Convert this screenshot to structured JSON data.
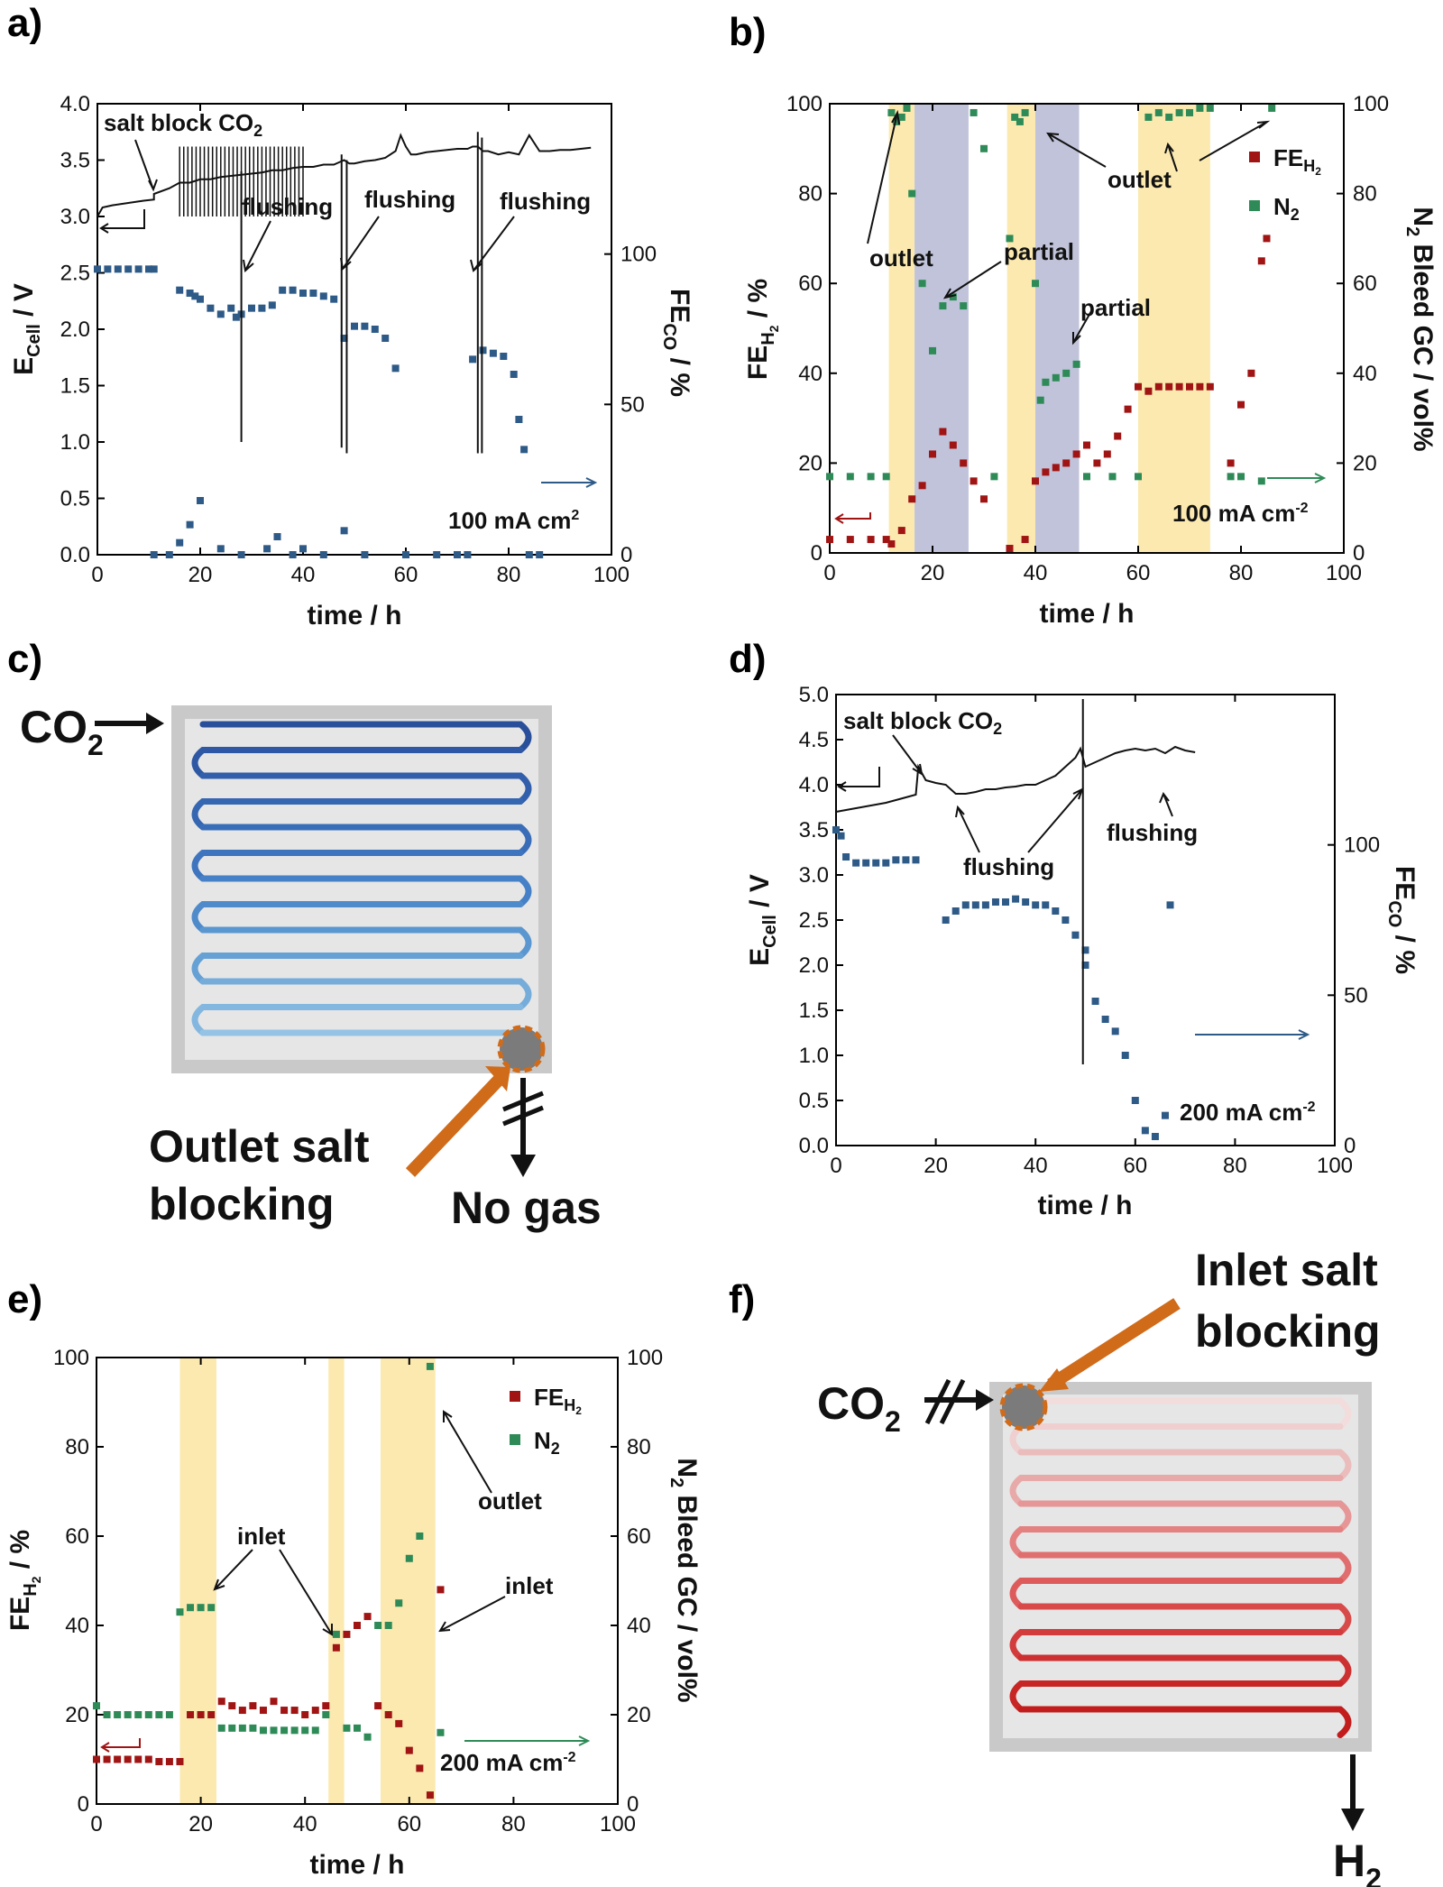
{
  "colors": {
    "fe_co": "#2e5a87",
    "fe_h2": "#a01414",
    "n2": "#2e8b57",
    "highlight_yellow": "#fbe7a6",
    "highlight_grey": "#b9bdd6",
    "accent_orange": "#d06b1a"
  },
  "panel_letters": {
    "a": "a)",
    "b": "b)",
    "c": "c)",
    "d": "d)",
    "e": "e)",
    "f": "f)"
  },
  "common_axis": {
    "xlabel": "time / h",
    "x_ticks": [
      "0",
      "20",
      "40",
      "60",
      "80",
      "100"
    ]
  },
  "a": {
    "ylabel": "ECell / V",
    "ylabel_main": "E",
    "ylabel_sub": "Cell",
    "ylabel_rest": " / V",
    "y2label_main": "FE",
    "y2label_sub": "CO",
    "y2label_rest": " / %",
    "y_ticks": [
      "0.0",
      "0.5",
      "1.0",
      "1.5",
      "2.0",
      "2.5",
      "3.0",
      "3.5",
      "4.0"
    ],
    "y2_ticks": [
      "0",
      "50",
      "100"
    ],
    "annotations": {
      "salt_block": "salt block CO",
      "salt_block_sub": "2",
      "flushing1": "flushing",
      "flushing2": "flushing",
      "flushing3": "flushing",
      "current": "100 mA cm",
      "current_sup": "2"
    }
  },
  "b": {
    "ylabel_main": "FE",
    "ylabel_sub": "H",
    "ylabel_subsub": "2",
    "ylabel_rest": " / %",
    "y2label": "N2 Bleed GC / vol%",
    "y2label_main": "N",
    "y2label_sub": "2",
    "y2label_rest": " Bleed GC / vol%",
    "y_ticks": [
      "0",
      "20",
      "40",
      "60",
      "80",
      "100"
    ],
    "legend": {
      "fe": "FE",
      "fe_sub": "H",
      "fe_subsub": "2",
      "n2": "N",
      "n2_sub": "2"
    },
    "annotations": {
      "outlet1": "outlet",
      "outlet2": "outlet",
      "partial1": "partial",
      "partial2": "partial",
      "current": "100 mA cm",
      "current_sup": "-2"
    }
  },
  "c": {
    "label_co2": "CO",
    "label_co2_sub": "2",
    "caption1": "Outlet salt",
    "caption2": "blocking",
    "nogas": "No gas"
  },
  "d": {
    "ylabel_main": "E",
    "ylabel_sub": "Cell",
    "ylabel_rest": " / V",
    "y2label_main": "FE",
    "y2label_sub": "CO",
    "y2label_rest": " / %",
    "y_ticks": [
      "0.0",
      "0.5",
      "1.0",
      "1.5",
      "2.0",
      "2.5",
      "3.0",
      "3.5",
      "4.0",
      "4.5",
      "5.0"
    ],
    "y2_ticks": [
      "0",
      "50",
      "100"
    ],
    "annotations": {
      "salt_block": "salt block CO",
      "salt_block_sub": "2",
      "flushing1": "flushing",
      "flushing2": "flushing",
      "current": "200 mA cm",
      "current_sup": "-2"
    }
  },
  "e": {
    "ylabel_main": "FE",
    "ylabel_sub": "H",
    "ylabel_subsub": "2",
    "ylabel_rest": " / %",
    "y2label_main": "N",
    "y2label_sub": "2",
    "y2label_rest": " Bleed GC / vol%",
    "y_ticks": [
      "0",
      "20",
      "40",
      "60",
      "80",
      "100"
    ],
    "legend": {
      "fe": "FE",
      "fe_sub": "H",
      "fe_subsub": "2",
      "n2": "N",
      "n2_sub": "2"
    },
    "annotations": {
      "inlet1": "inlet",
      "inlet2": "inlet",
      "outlet": "outlet",
      "current": "200 mA cm",
      "current_sup": "-2"
    }
  },
  "f": {
    "caption1": "Inlet salt",
    "caption2": "blocking",
    "label_co2": "CO",
    "label_co2_sub": "2",
    "h2": "H",
    "h2_sub": "2"
  },
  "chart_data": [
    {
      "type": "line",
      "panel": "a",
      "xlim": [
        0,
        100
      ],
      "ylim": [
        0,
        4
      ],
      "y2lim": [
        0,
        150
      ],
      "series": [
        {
          "axis": "left",
          "x": [
            0,
            1,
            3,
            6,
            9,
            11,
            11,
            14,
            16,
            18,
            20,
            22,
            24,
            26,
            28,
            30,
            32,
            34,
            36,
            38,
            40,
            42,
            44,
            46,
            47,
            48,
            49,
            50,
            52,
            54,
            56,
            58,
            59,
            60,
            61,
            62,
            64,
            66,
            68,
            70,
            72,
            73,
            74,
            75,
            76,
            78,
            80,
            82,
            84,
            86,
            88,
            90,
            92,
            94,
            96
          ],
          "y": [
            3.0,
            3.08,
            3.1,
            3.12,
            3.14,
            3.15,
            3.2,
            3.25,
            3.3,
            3.3,
            3.33,
            3.33,
            3.35,
            3.36,
            3.37,
            3.38,
            3.39,
            3.41,
            3.41,
            3.43,
            3.44,
            3.44,
            3.46,
            3.46,
            3.48,
            3.5,
            3.47,
            3.47,
            3.49,
            3.5,
            3.52,
            3.58,
            3.72,
            3.62,
            3.55,
            3.55,
            3.57,
            3.58,
            3.59,
            3.6,
            3.6,
            3.62,
            3.62,
            3.58,
            3.58,
            3.55,
            3.57,
            3.55,
            3.72,
            3.58,
            3.58,
            3.59,
            3.59,
            3.6,
            3.61
          ]
        },
        {
          "axis": "right",
          "x": [
            0,
            2,
            4,
            6,
            8,
            10,
            11
          ],
          "y": [
            95,
            95,
            95,
            95,
            95,
            95,
            95
          ]
        },
        {
          "axis": "right",
          "x": [
            16,
            18,
            19,
            20,
            22,
            24,
            26,
            27
          ],
          "y": [
            88,
            87,
            86,
            85,
            82,
            80,
            82,
            79
          ]
        },
        {
          "axis": "right",
          "x": [
            28,
            30,
            32,
            34
          ],
          "y": [
            80,
            82,
            82,
            83
          ]
        },
        {
          "axis": "right",
          "x": [
            36,
            38,
            40,
            42,
            44,
            46
          ],
          "y": [
            88,
            88,
            87,
            87,
            86,
            85
          ]
        },
        {
          "axis": "right",
          "x": [
            48,
            50,
            52,
            54,
            56,
            58
          ],
          "y": [
            72,
            76,
            76,
            75,
            72,
            62
          ]
        },
        {
          "axis": "right",
          "x": [
            73,
            75,
            77,
            79,
            81,
            82,
            83
          ],
          "y": [
            65,
            68,
            67,
            66,
            60,
            45,
            35
          ]
        },
        {
          "axis": "right",
          "x": [
            11,
            14,
            16,
            18,
            20,
            24,
            28,
            33,
            35,
            38,
            40,
            44,
            48,
            52,
            60,
            66,
            70,
            72,
            84,
            86
          ],
          "y": [
            0,
            0,
            4,
            10,
            18,
            2,
            0,
            2,
            6,
            0,
            2,
            0,
            8,
            0,
            0,
            0,
            0,
            0,
            0,
            0
          ]
        }
      ]
    },
    {
      "type": "scatter",
      "panel": "b",
      "xlim": [
        0,
        100
      ],
      "ylim": [
        0,
        100
      ],
      "y2lim": [
        0,
        100
      ],
      "highlights": [
        {
          "x0": 11.5,
          "x1": 16.5,
          "kind": "yellow"
        },
        {
          "x0": 16.5,
          "x1": 27,
          "kind": "grey"
        },
        {
          "x0": 34.5,
          "x1": 40,
          "kind": "yellow"
        },
        {
          "x0": 40,
          "x1": 48.5,
          "kind": "grey"
        },
        {
          "x0": 60,
          "x1": 74,
          "kind": "yellow"
        }
      ],
      "series": [
        {
          "name": "FE_H2",
          "x": [
            0,
            4,
            8,
            11,
            12,
            14,
            16,
            18,
            20,
            22,
            24,
            26,
            28,
            30,
            35,
            38,
            40,
            42,
            44,
            46,
            48,
            50,
            52,
            54,
            56,
            58,
            60,
            62,
            64,
            66,
            68,
            70,
            72,
            74,
            78,
            80,
            82,
            84,
            85
          ],
          "y": [
            3,
            3,
            3,
            3,
            2,
            5,
            12,
            15,
            22,
            27,
            24,
            20,
            16,
            12,
            1,
            3,
            16,
            18,
            19,
            20,
            22,
            24,
            20,
            22,
            26,
            32,
            37,
            36,
            37,
            37,
            37,
            37,
            37,
            37,
            20,
            33,
            40,
            65,
            70
          ]
        },
        {
          "name": "N2",
          "x": [
            0,
            4,
            8,
            11,
            12,
            13,
            14,
            15,
            16,
            18,
            20,
            22,
            24,
            26,
            28,
            30,
            32,
            35,
            36,
            37,
            38,
            40,
            41,
            42,
            44,
            46,
            48,
            50,
            55,
            60,
            62,
            64,
            66,
            68,
            70,
            72,
            74,
            78,
            80,
            84,
            86
          ],
          "y": [
            17,
            17,
            17,
            17,
            98,
            96,
            97,
            99,
            80,
            60,
            45,
            55,
            57,
            55,
            98,
            90,
            17,
            70,
            97,
            96,
            98,
            60,
            34,
            38,
            39,
            40,
            42,
            17,
            17,
            17,
            97,
            98,
            97,
            98,
            98,
            99,
            99,
            17,
            17,
            16,
            99
          ]
        }
      ]
    },
    {
      "type": "line",
      "panel": "d",
      "xlim": [
        0,
        100
      ],
      "ylim": [
        0,
        5
      ],
      "y2lim": [
        0,
        150
      ],
      "series": [
        {
          "axis": "left",
          "x": [
            0,
            2,
            4,
            6,
            8,
            10,
            12,
            14,
            16,
            16.5,
            18,
            20,
            22,
            24,
            26,
            28,
            30,
            32,
            34,
            36,
            38,
            40,
            42,
            44,
            46,
            48,
            49,
            50,
            52,
            54,
            56,
            58,
            60,
            62,
            64,
            66,
            68,
            70,
            72
          ],
          "y": [
            3.7,
            3.72,
            3.74,
            3.76,
            3.78,
            3.8,
            3.83,
            3.86,
            3.89,
            4.2,
            4.05,
            4.02,
            4.0,
            3.9,
            3.9,
            3.92,
            3.95,
            3.95,
            3.97,
            3.98,
            4.0,
            4.0,
            4.05,
            4.1,
            4.2,
            4.3,
            4.4,
            4.2,
            4.25,
            4.3,
            4.35,
            4.38,
            4.4,
            4.38,
            4.4,
            4.35,
            4.42,
            4.38,
            4.36
          ]
        },
        {
          "axis": "right",
          "x": [
            0,
            1,
            2,
            4,
            6,
            8,
            10,
            12,
            14,
            16
          ],
          "y": [
            105,
            103,
            96,
            94,
            94,
            94,
            94,
            95,
            95,
            95
          ]
        },
        {
          "axis": "right",
          "x": [
            22,
            24,
            26,
            28,
            30,
            32,
            34,
            36,
            38,
            40,
            42,
            44,
            46,
            48,
            50
          ],
          "y": [
            75,
            78,
            80,
            80,
            80,
            81,
            81,
            82,
            81,
            80,
            80,
            78,
            75,
            70,
            65
          ]
        },
        {
          "axis": "right",
          "x": [
            50,
            52,
            54,
            56,
            58,
            60,
            62,
            64,
            66,
            67
          ],
          "y": [
            60,
            48,
            42,
            38,
            30,
            15,
            5,
            3,
            10,
            80
          ]
        }
      ]
    },
    {
      "type": "scatter",
      "panel": "e",
      "xlim": [
        0,
        100
      ],
      "ylim": [
        0,
        100
      ],
      "y2lim": [
        0,
        100
      ],
      "highlights": [
        {
          "x0": 16,
          "x1": 23,
          "kind": "yellow"
        },
        {
          "x0": 44.5,
          "x1": 47.5,
          "kind": "yellow"
        },
        {
          "x0": 54.5,
          "x1": 65,
          "kind": "yellow"
        }
      ],
      "series": [
        {
          "name": "FE_H2",
          "x": [
            0,
            2,
            4,
            6,
            8,
            10,
            12,
            14,
            16,
            18,
            20,
            22,
            24,
            26,
            28,
            30,
            32,
            34,
            36,
            38,
            40,
            42,
            44,
            46,
            48,
            50,
            52,
            54,
            56,
            58,
            60,
            62,
            64,
            66
          ],
          "y": [
            10,
            10,
            10,
            10,
            10,
            10,
            9.5,
            9.5,
            9.5,
            20,
            20,
            20,
            23,
            22,
            21,
            22,
            21,
            23,
            21,
            21,
            20,
            21,
            22,
            35,
            38,
            40,
            42,
            22,
            20,
            18,
            12,
            8,
            2,
            48
          ]
        },
        {
          "name": "N2",
          "x": [
            0,
            2,
            4,
            6,
            8,
            10,
            12,
            14,
            16,
            18,
            20,
            22,
            24,
            26,
            28,
            30,
            32,
            34,
            36,
            38,
            40,
            42,
            44,
            46,
            48,
            50,
            52,
            54,
            56,
            58,
            60,
            62,
            64,
            66
          ],
          "y": [
            22,
            20,
            20,
            20,
            20,
            20,
            20,
            20,
            43,
            44,
            44,
            44,
            17,
            17,
            17,
            17,
            16.5,
            16.5,
            16.5,
            16.5,
            16.5,
            16.5,
            20,
            38,
            17,
            17,
            15,
            40,
            40,
            45,
            55,
            60,
            98,
            16
          ]
        }
      ]
    }
  ]
}
